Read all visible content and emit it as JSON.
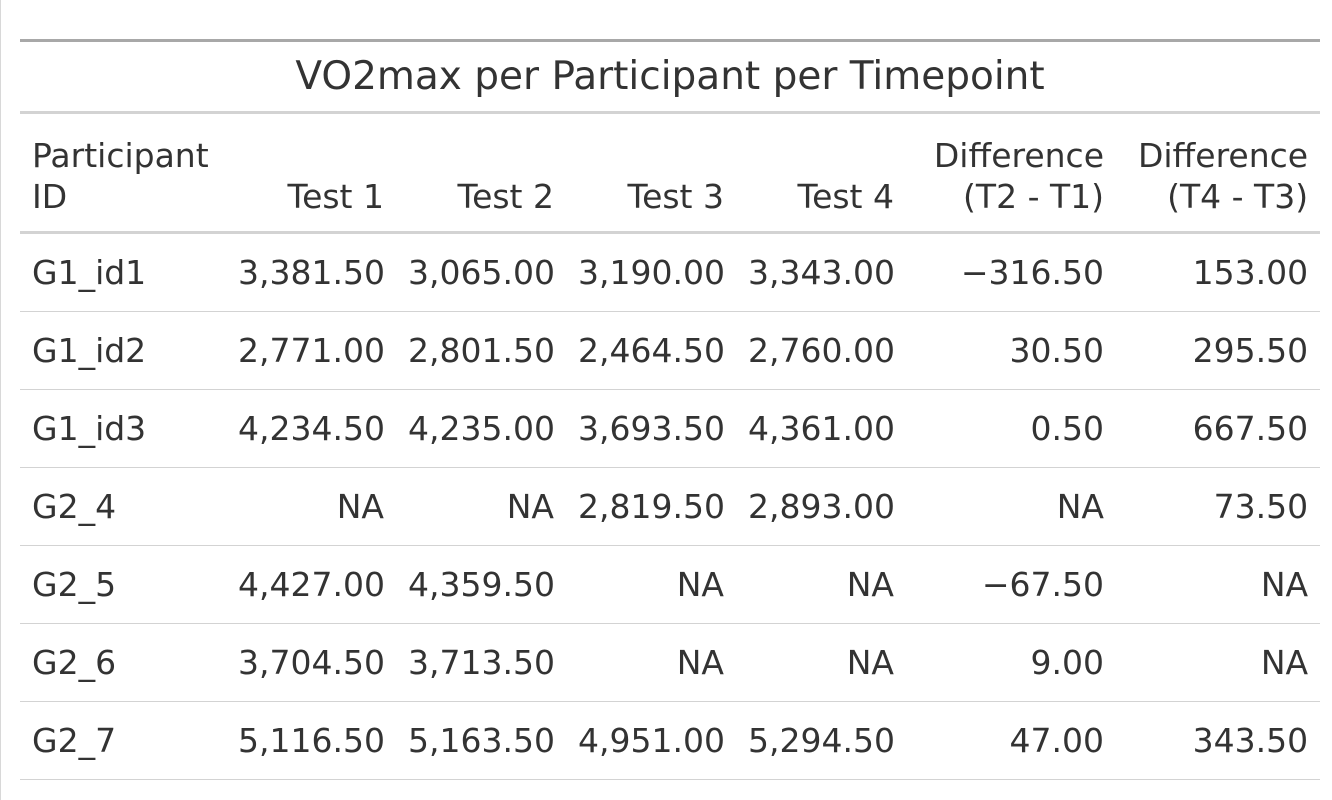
{
  "table": {
    "title": "VO2max per Participant per Timepoint",
    "columns": [
      [
        "Participant",
        "ID"
      ],
      [
        "",
        "Test 1"
      ],
      [
        "",
        "Test 2"
      ],
      [
        "",
        "Test 3"
      ],
      [
        "",
        "Test 4"
      ],
      [
        "Difference",
        "(T2 - T1)"
      ],
      [
        "Difference",
        "(T4 - T3)"
      ]
    ],
    "rows": [
      [
        "G1_id1",
        "3,381.50",
        "3,065.00",
        "3,190.00",
        "3,343.00",
        "−316.50",
        "153.00"
      ],
      [
        "G1_id2",
        "2,771.00",
        "2,801.50",
        "2,464.50",
        "2,760.00",
        "30.50",
        "295.50"
      ],
      [
        "G1_id3",
        "4,234.50",
        "4,235.00",
        "3,693.50",
        "4,361.00",
        "0.50",
        "667.50"
      ],
      [
        "G2_4",
        "NA",
        "NA",
        "2,819.50",
        "2,893.00",
        "NA",
        "73.50"
      ],
      [
        "G2_5",
        "4,427.00",
        "4,359.50",
        "NA",
        "NA",
        "−67.50",
        "NA"
      ],
      [
        "G2_6",
        "3,704.50",
        "3,713.50",
        "NA",
        "NA",
        "9.00",
        "NA"
      ],
      [
        "G2_7",
        "5,116.50",
        "5,163.50",
        "4,951.00",
        "5,294.50",
        "47.00",
        "343.50"
      ]
    ]
  }
}
